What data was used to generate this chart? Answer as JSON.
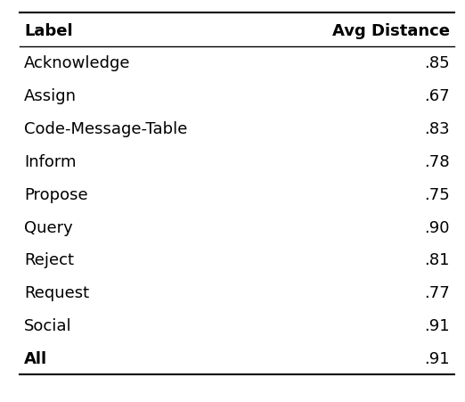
{
  "headers": [
    "Label",
    "Avg Distance"
  ],
  "rows": [
    [
      "Acknowledge",
      ".85"
    ],
    [
      "Assign",
      ".67"
    ],
    [
      "Code-Message-Table",
      ".83"
    ],
    [
      "Inform",
      ".78"
    ],
    [
      "Propose",
      ".75"
    ],
    [
      "Query",
      ".90"
    ],
    [
      "Reject",
      ".81"
    ],
    [
      "Request",
      ".77"
    ],
    [
      "Social",
      ".91"
    ],
    [
      "All",
      ".91"
    ]
  ],
  "bold_last_row": true,
  "background_color": "#ffffff",
  "text_color": "#000000",
  "font_size": 13,
  "header_font_size": 13,
  "fig_width": 5.22,
  "fig_height": 4.52,
  "dpi": 100
}
